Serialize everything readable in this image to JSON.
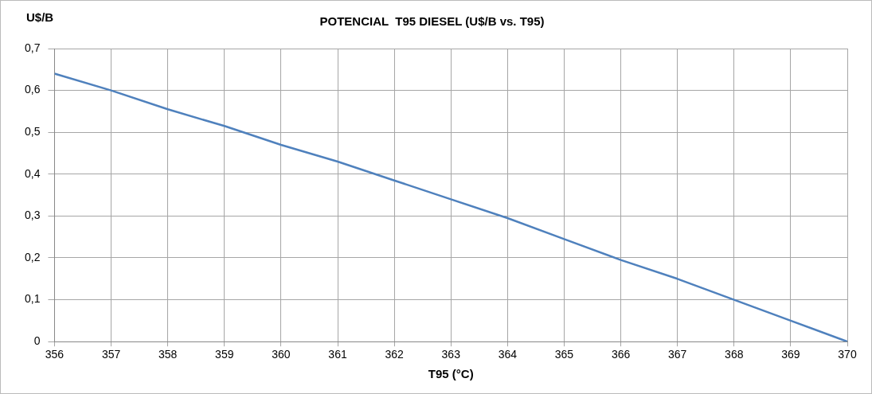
{
  "chart_data": {
    "type": "line",
    "title": "POTENCIAL  T95 DIESEL (U$/B vs. T95)",
    "xlabel": "T95 (°C)",
    "ylabel": "U$/B",
    "x": [
      356,
      357,
      358,
      359,
      360,
      361,
      362,
      363,
      364,
      365,
      366,
      367,
      368,
      369,
      370
    ],
    "series": [
      {
        "color": "#4f81bd",
        "values": [
          0.64,
          0.6,
          0.555,
          0.515,
          0.47,
          0.43,
          0.385,
          0.34,
          0.295,
          0.245,
          0.195,
          0.15,
          0.1,
          0.05,
          0
        ]
      }
    ],
    "xlim": [
      356,
      370
    ],
    "xticks": [
      356,
      357,
      358,
      359,
      360,
      361,
      362,
      363,
      364,
      365,
      366,
      367,
      368,
      369,
      370
    ],
    "ylim": [
      0,
      0.7
    ],
    "yticks": [
      0,
      {
        "value": 0.1,
        "label": "0,1"
      },
      {
        "value": 0.2,
        "label": "0,2"
      },
      {
        "value": 0.3,
        "label": "0,3"
      },
      {
        "value": 0.4,
        "label": "0,4"
      },
      {
        "value": 0.5,
        "label": "0,5"
      },
      {
        "value": 0.6,
        "label": "0,6"
      },
      {
        "value": 0.7,
        "label": "0,7"
      }
    ],
    "grid": true,
    "legend": false,
    "marker": "none",
    "line_style": "solid"
  }
}
